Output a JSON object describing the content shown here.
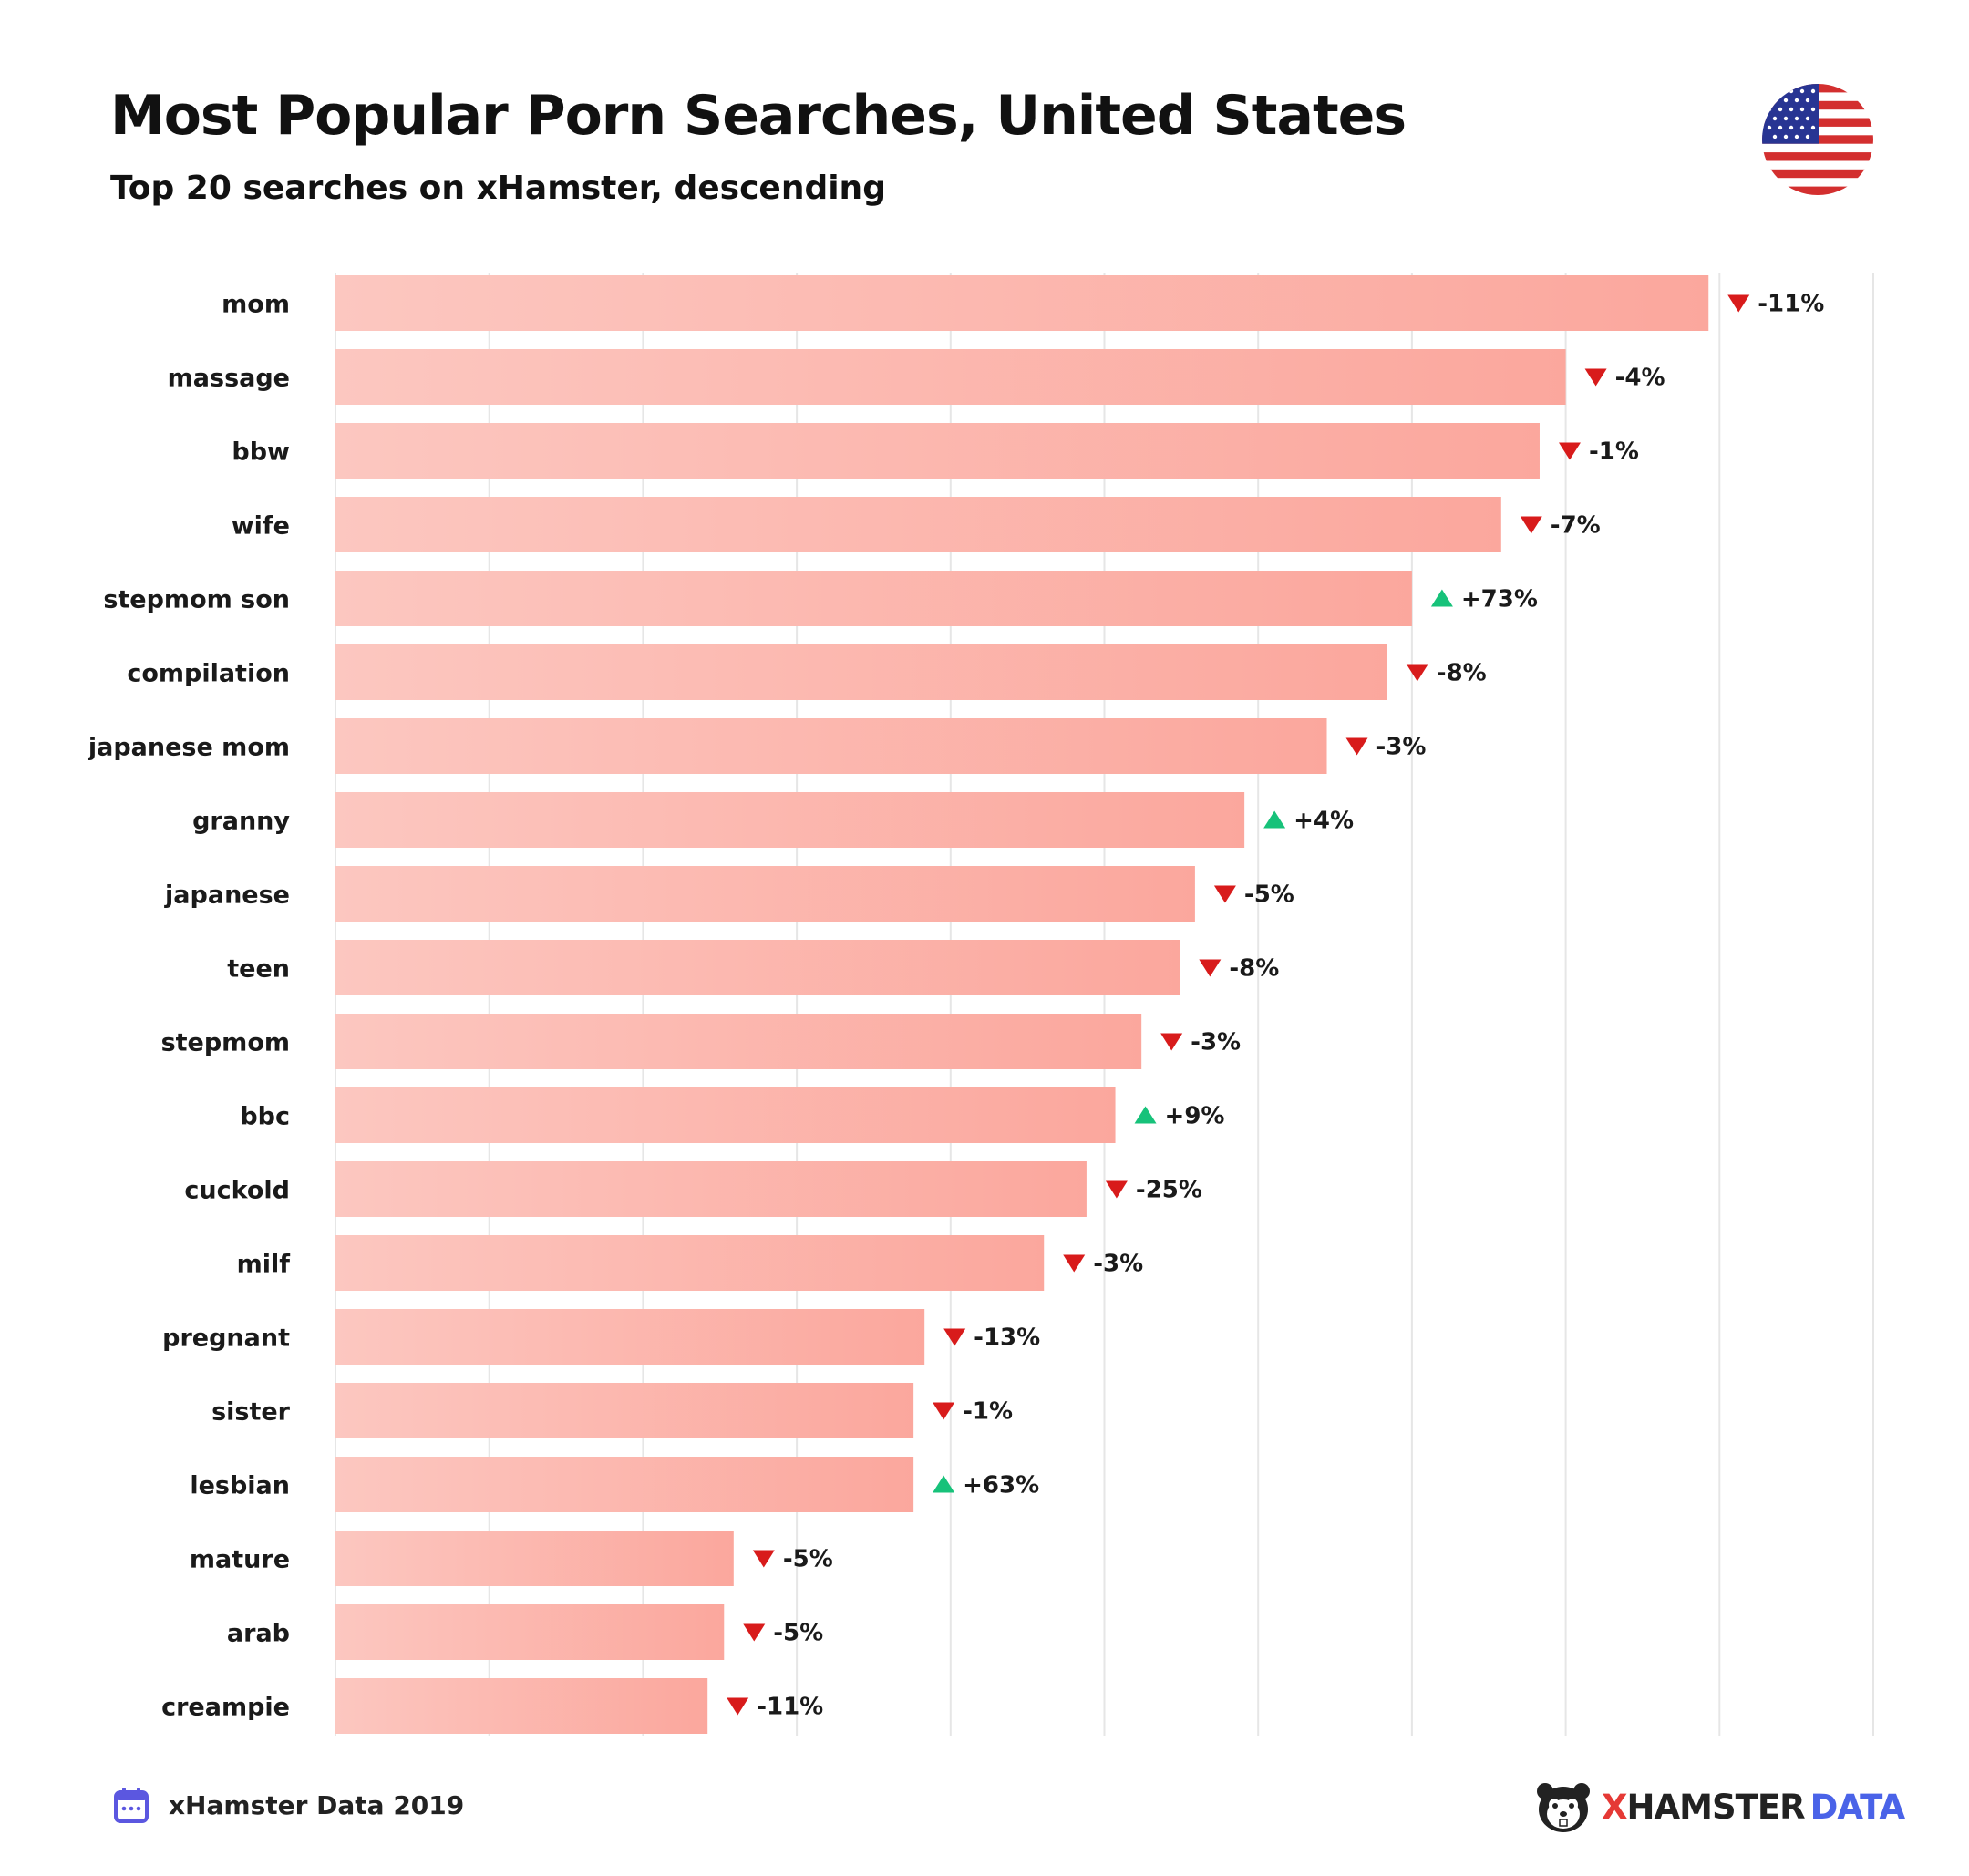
{
  "header": {
    "title": "Most Popular Porn Searches, United States",
    "subtitle": "Top 20 searches on xHamster, descending"
  },
  "footer": {
    "source_label": "xHamster Data 2019",
    "brand_x": "X",
    "brand_hamster": "HAMSTER",
    "brand_data": "DATA"
  },
  "icons": {
    "flag": "us-flag-icon",
    "calendar": "calendar-icon",
    "brand": "hamster-logo-icon",
    "up": "triangle-up-icon",
    "down": "triangle-down-icon"
  },
  "colors": {
    "bar_start": "#fcc7c0",
    "bar_end": "#fba79d",
    "up": "#17c27a",
    "down": "#d81b1b",
    "grid": "#e6e6e6",
    "brand_red": "#e53935",
    "brand_blue": "#4a63e8"
  },
  "chart_data": {
    "type": "bar",
    "orientation": "horizontal",
    "grid": true,
    "categories": [
      "mom",
      "massage",
      "bbw",
      "wife",
      "stepmom son",
      "compilation",
      "japanese mom",
      "granny",
      "japanese",
      "teen",
      "stepmom",
      "bbc",
      "cuckold",
      "milf",
      "pregnant",
      "sister",
      "lesbian",
      "mature",
      "arab",
      "creampie"
    ],
    "values": [
      100,
      89.6,
      87.7,
      84.9,
      78.4,
      76.6,
      72.2,
      66.2,
      62.6,
      61.5,
      58.7,
      56.8,
      54.7,
      51.6,
      42.9,
      42.1,
      42.1,
      29.0,
      28.3,
      27.1
    ],
    "changes": [
      "-11%",
      "-4%",
      "-1%",
      "-7%",
      "+73%",
      "-8%",
      "-3%",
      "+4%",
      "-5%",
      "-8%",
      "-3%",
      "+9%",
      "-25%",
      "-3%",
      "-13%",
      "-1%",
      "+63%",
      "-5%",
      "-5%",
      "-11%"
    ],
    "directions": [
      "down",
      "down",
      "down",
      "down",
      "up",
      "down",
      "down",
      "up",
      "down",
      "down",
      "down",
      "up",
      "down",
      "down",
      "down",
      "down",
      "up",
      "down",
      "down",
      "down"
    ],
    "xlim": [
      0,
      112
    ]
  }
}
